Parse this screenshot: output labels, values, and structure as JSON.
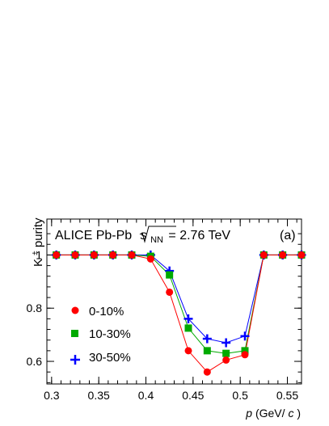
{
  "chart_data": {
    "type": "scatter",
    "panel_label": "(a)",
    "title": {
      "experiment": "ALICE Pb-Pb",
      "energy_variable": "s",
      "energy_subscript": "NN",
      "energy_value": "= 2.76 TeV"
    },
    "ylabel": {
      "base": "K",
      "superscript": "±",
      "rest": " purity"
    },
    "xlabel": {
      "var": "p",
      "unit_open": " (GeV/",
      "unit_var": "c",
      "unit_close": ")"
    },
    "xlim": [
      0.295,
      0.565
    ],
    "ylim": [
      0.515,
      1.135
    ],
    "x_ticks": [
      0.3,
      0.35,
      0.4,
      0.45,
      0.5,
      0.55
    ],
    "x_tick_labels": [
      "0.3",
      "0.35",
      "0.4",
      "0.45",
      "0.5",
      "0.55"
    ],
    "y_ticks": [
      0.6,
      0.8,
      1.0
    ],
    "y_tick_labels": [
      "0.6",
      "0.8",
      "1"
    ],
    "grid": false,
    "legend_position": "lower-left",
    "x": [
      0.305,
      0.325,
      0.345,
      0.365,
      0.385,
      0.405,
      0.425,
      0.445,
      0.465,
      0.485,
      0.505,
      0.525,
      0.545,
      0.565
    ],
    "series": [
      {
        "name": "0-10%",
        "color": "#ff0000",
        "marker": "circle",
        "values": [
          1.0,
          1.0,
          1.0,
          1.0,
          1.0,
          0.985,
          0.86,
          0.64,
          0.56,
          0.605,
          0.625,
          1.0,
          1.0,
          1.0
        ]
      },
      {
        "name": "10-30%",
        "color": "#00aa00",
        "marker": "square",
        "values": [
          1.0,
          1.0,
          1.0,
          1.0,
          1.0,
          0.995,
          0.925,
          0.725,
          0.64,
          0.63,
          0.64,
          1.0,
          1.0,
          1.0
        ]
      },
      {
        "name": "30-50%",
        "color": "#0000ff",
        "marker": "cross",
        "values": [
          1.0,
          1.0,
          1.0,
          1.0,
          1.0,
          1.0,
          0.94,
          0.76,
          0.685,
          0.67,
          0.695,
          1.0,
          1.0,
          1.0
        ]
      }
    ]
  }
}
